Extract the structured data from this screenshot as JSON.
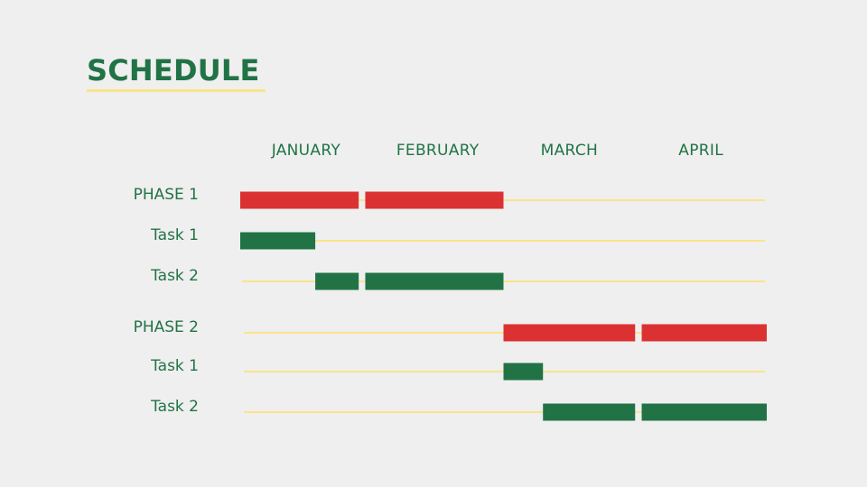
{
  "slide": {
    "title": "SCHEDULE"
  },
  "colors": {
    "background": "#efefef",
    "title": "#217346",
    "accent_line": "#fbe38a",
    "phase_bar": "#dc3132",
    "task_bar": "#217346",
    "label_text": "#217346"
  },
  "chart_data": {
    "type": "gantt",
    "title": "",
    "x_unit": "month",
    "categories": [
      "JANUARY",
      "FEBRUARY",
      "MARCH",
      "APRIL"
    ],
    "x_range": [
      0,
      4
    ],
    "rows": [
      {
        "label": "PHASE 1",
        "kind": "phase",
        "segments": [
          [
            0,
            0.9
          ],
          [
            0.95,
            2.0
          ]
        ]
      },
      {
        "label": "Task 1",
        "kind": "task",
        "segments": [
          [
            0,
            0.57
          ]
        ]
      },
      {
        "label": "Task 2",
        "kind": "task",
        "segments": [
          [
            0.57,
            0.9
          ],
          [
            0.95,
            2.0
          ]
        ]
      },
      {
        "label": "PHASE 2",
        "kind": "phase",
        "segments": [
          [
            2.0,
            3.0
          ],
          [
            3.05,
            4.0
          ]
        ]
      },
      {
        "label": "Task 1",
        "kind": "task",
        "segments": [
          [
            2.0,
            2.3
          ]
        ]
      },
      {
        "label": "Task 2",
        "kind": "task",
        "segments": [
          [
            2.3,
            3.0
          ],
          [
            3.05,
            4.0
          ]
        ]
      }
    ]
  }
}
